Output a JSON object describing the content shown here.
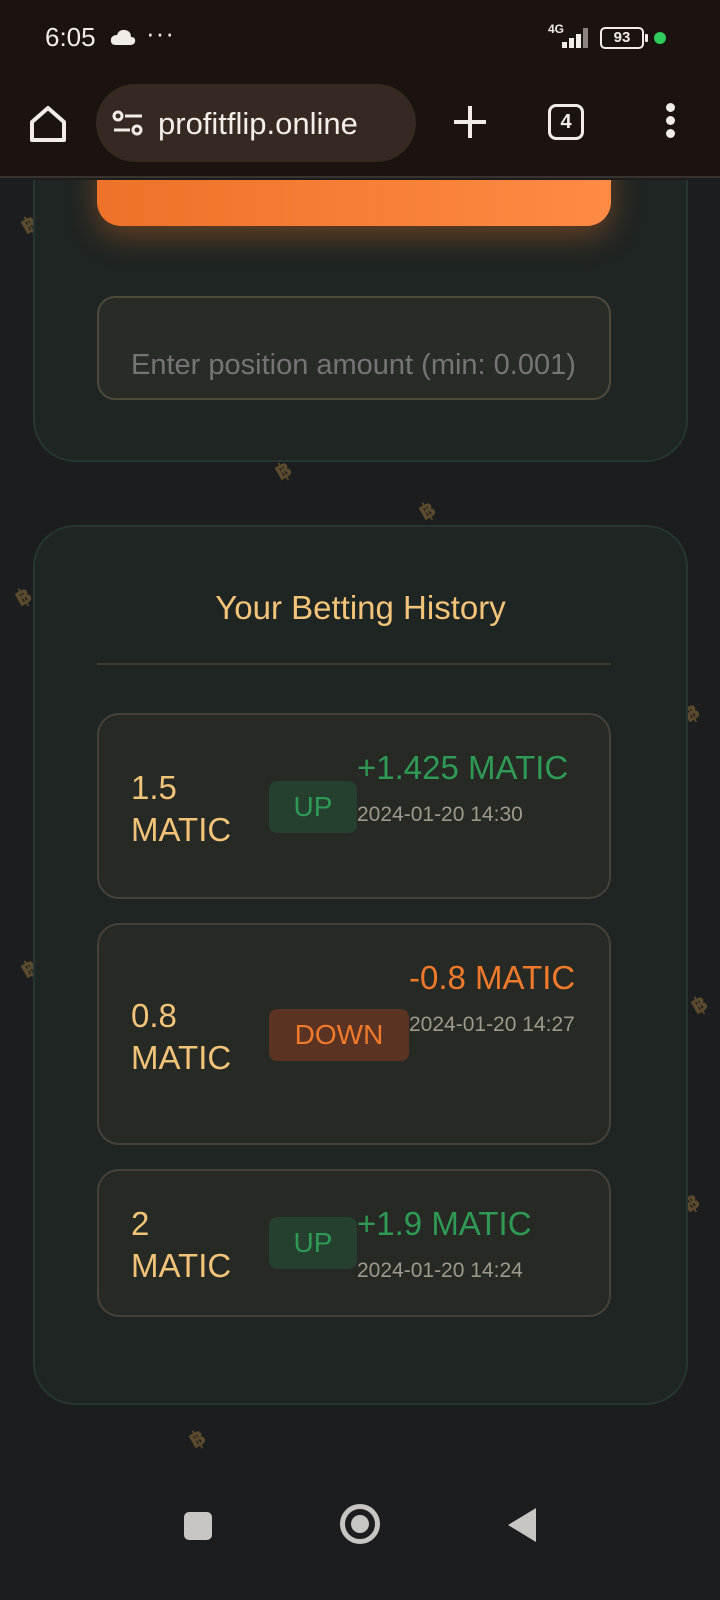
{
  "status_bar": {
    "time": "6:05",
    "network": "4G",
    "battery": "93",
    "icons": [
      "cloud-icon",
      "more-dots-icon",
      "signal-icon",
      "battery-icon",
      "privacy-dot-icon"
    ]
  },
  "browser": {
    "url": "profitflip.online",
    "tab_count": "4",
    "icons": [
      "home-icon",
      "site-settings-icon",
      "new-tab-icon",
      "tabs-icon",
      "menu-icon"
    ]
  },
  "bet_form": {
    "amount_placeholder": "Enter position amount (min: 0.001)"
  },
  "history": {
    "title": "Your Betting History",
    "bets": [
      {
        "amount": "1.5 MATIC",
        "direction": "UP",
        "result": "+1.425 MATIC",
        "time": "2024-01-20 14:30"
      },
      {
        "amount": "0.8 MATIC",
        "direction": "DOWN",
        "result": "-0.8 MATIC",
        "time": "2024-01-20 14:27"
      },
      {
        "amount": "2 MATIC",
        "direction": "UP",
        "result": "+1.9 MATIC",
        "time": "2024-01-20 14:24"
      }
    ]
  },
  "colors": {
    "accent_orange": "#ee7228",
    "gold_text": "#f2c47a",
    "win_green": "#2f9a55",
    "loss_orange": "#f07a2c"
  }
}
